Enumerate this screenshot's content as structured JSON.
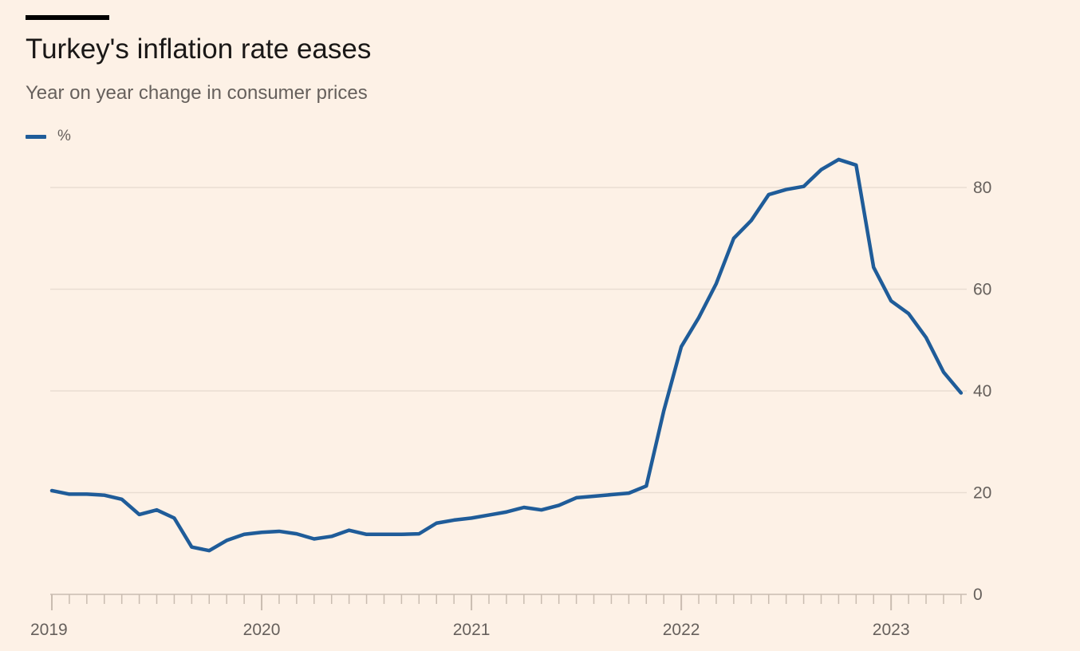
{
  "header": {
    "title": "Turkey's inflation rate eases",
    "subtitle": "Year on year change in consumer prices"
  },
  "legend": {
    "label": "%"
  },
  "colors": {
    "background": "#fdf1e6",
    "line": "#1f5c99",
    "grid": "#e9ddd2",
    "axis": "#c9bcb0",
    "tick_text": "#66605c",
    "title_rule": "#000000"
  },
  "chart_data": {
    "type": "line",
    "title": "Turkey's inflation rate eases",
    "subtitle": "Year on year change in consumer prices",
    "xlabel": "",
    "ylabel": "",
    "ylim": [
      0,
      90
    ],
    "y_ticks": [
      0,
      20,
      40,
      60,
      80
    ],
    "y_tick_labels": [
      "0",
      "20",
      "40",
      "60",
      "80"
    ],
    "x_tick_labels": [
      "2019",
      "2020",
      "2021",
      "2022",
      "2023"
    ],
    "grid": true,
    "y_axis_position": "right",
    "legend_position": "top-left",
    "series": [
      {
        "name": "%",
        "x": [
          "2019-01",
          "2019-02",
          "2019-03",
          "2019-04",
          "2019-05",
          "2019-06",
          "2019-07",
          "2019-08",
          "2019-09",
          "2019-10",
          "2019-11",
          "2019-12",
          "2020-01",
          "2020-02",
          "2020-03",
          "2020-04",
          "2020-05",
          "2020-06",
          "2020-07",
          "2020-08",
          "2020-09",
          "2020-10",
          "2020-11",
          "2020-12",
          "2021-01",
          "2021-02",
          "2021-03",
          "2021-04",
          "2021-05",
          "2021-06",
          "2021-07",
          "2021-08",
          "2021-09",
          "2021-10",
          "2021-11",
          "2021-12",
          "2022-01",
          "2022-02",
          "2022-03",
          "2022-04",
          "2022-05",
          "2022-06",
          "2022-07",
          "2022-08",
          "2022-09",
          "2022-10",
          "2022-11",
          "2022-12",
          "2023-01",
          "2023-02",
          "2023-03",
          "2023-04",
          "2023-05"
        ],
        "values": [
          20.4,
          19.7,
          19.7,
          19.5,
          18.7,
          15.7,
          16.6,
          15.0,
          9.3,
          8.6,
          10.6,
          11.8,
          12.2,
          12.4,
          11.9,
          10.9,
          11.4,
          12.6,
          11.8,
          11.8,
          11.8,
          11.9,
          14.0,
          14.6,
          15.0,
          15.6,
          16.2,
          17.1,
          16.6,
          17.5,
          19.0,
          19.3,
          19.6,
          19.9,
          21.3,
          36.1,
          48.7,
          54.4,
          61.1,
          70.0,
          73.5,
          78.6,
          79.6,
          80.2,
          83.5,
          85.5,
          84.4,
          64.3,
          57.7,
          55.2,
          50.5,
          43.7,
          39.6
        ]
      }
    ]
  }
}
